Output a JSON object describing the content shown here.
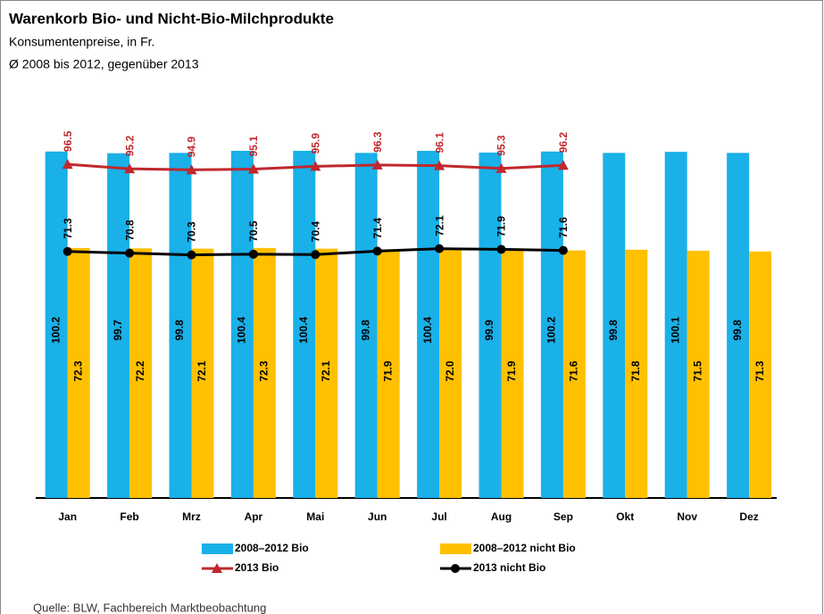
{
  "chart_data": {
    "type": "bar_line",
    "title": "Warenkorb Bio- und Nicht-Bio-Milchprodukte",
    "subtitle": [
      "Konsumentenpreise, in Fr.",
      "Ø 2008 bis 2012, gegenüber 2013"
    ],
    "source": "Quelle: BLW, Fachbereich Marktbeobachtung",
    "categories": [
      "Jan",
      "Feb",
      "Mrz",
      "Apr",
      "Mai",
      "Jun",
      "Jul",
      "Aug",
      "Sep",
      "Okt",
      "Nov",
      "Dez"
    ],
    "series": [
      {
        "name": "2008–2012 Bio",
        "type": "bar",
        "color": "#1ab0e8",
        "values": [
          100.2,
          99.7,
          99.8,
          100.4,
          100.4,
          99.8,
          100.4,
          99.9,
          100.2,
          99.8,
          100.1,
          99.8
        ],
        "value_labels": [
          "100.2",
          "99.7",
          "99.8",
          "100.4",
          "100.4",
          "99.8",
          "100.4",
          "99.9",
          "100.2",
          "99.8",
          "100.1",
          "99.8"
        ]
      },
      {
        "name": "2008–2012 nicht Bio",
        "type": "bar",
        "color": "#ffc000",
        "values": [
          72.3,
          72.2,
          72.1,
          72.3,
          72.1,
          71.9,
          72.0,
          71.9,
          71.6,
          71.8,
          71.5,
          71.3
        ],
        "value_labels": [
          "72.3",
          "72.2",
          "72.1",
          "72.3",
          "72.1",
          "71.9",
          "72.0",
          "71.9",
          "71.6",
          "71.8",
          "71.5",
          "71.3"
        ]
      },
      {
        "name": "2013 Bio",
        "type": "line",
        "marker": "triangle",
        "color": "#c0282d",
        "values": [
          96.5,
          95.2,
          94.9,
          95.1,
          95.9,
          96.3,
          96.1,
          95.3,
          96.2,
          null,
          null,
          null
        ],
        "value_labels": [
          "96.5",
          "95.2",
          "94.9",
          "95.1",
          "95.9",
          "96.3",
          "96.1",
          "95.3",
          "96.2",
          null,
          null,
          null
        ]
      },
      {
        "name": "2013 nicht Bio",
        "type": "line",
        "marker": "circle",
        "color": "#000000",
        "values": [
          71.3,
          70.8,
          70.3,
          70.5,
          70.4,
          71.4,
          72.1,
          71.9,
          71.6,
          null,
          null,
          null
        ],
        "value_labels": [
          "71.3",
          "70.8",
          "70.3",
          "70.5",
          "70.4",
          "71.4",
          "72.1",
          "71.9",
          "71.6",
          null,
          null,
          null
        ]
      }
    ]
  }
}
